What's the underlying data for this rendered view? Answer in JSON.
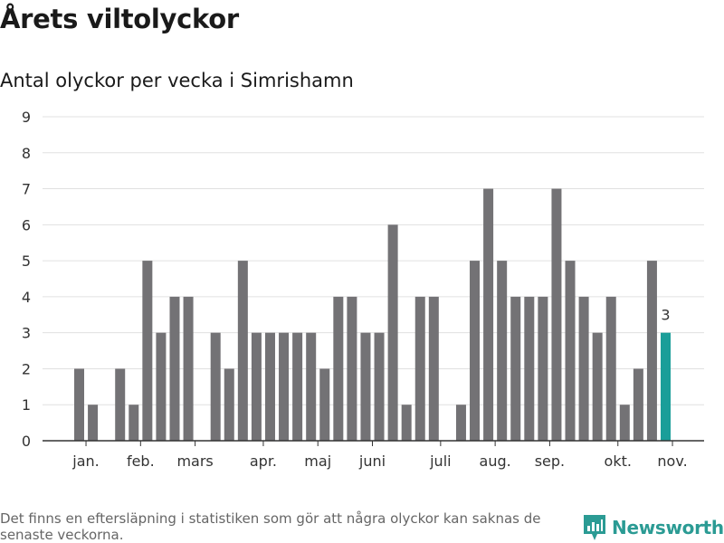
{
  "title": "Årets viltolyckor",
  "subtitle": "Antal olyckor per vecka i Simrishamn",
  "footer_note": "Det finns en eftersläpning i statistiken som gör att några olyckor kan saknas de senaste veckorna.",
  "brand": {
    "name": "Newsworthy",
    "icon": "newsworthy-logo-icon"
  },
  "colors": {
    "bar": "#737275",
    "highlight": "#1a9e99",
    "grid": "#e0e0e0",
    "axis": "#333333",
    "text": "#333333",
    "brand": "#2b9b94"
  },
  "chart_data": {
    "type": "bar",
    "title": "Antal olyckor per vecka i Simrishamn",
    "xlabel": "",
    "ylabel": "",
    "ylim": [
      0,
      9
    ],
    "yticks": [
      0,
      1,
      2,
      3,
      4,
      5,
      6,
      7,
      8,
      9
    ],
    "grid": true,
    "weeks": [
      1,
      2,
      3,
      4,
      5,
      6,
      7,
      8,
      9,
      10,
      11,
      12,
      13,
      14,
      15,
      16,
      17,
      18,
      19,
      20,
      21,
      22,
      23,
      24,
      25,
      26,
      27,
      28,
      29,
      30,
      31,
      32,
      33,
      34,
      35,
      36,
      37,
      38,
      39,
      40,
      41,
      42,
      43,
      44,
      45,
      46
    ],
    "values": [
      0,
      0,
      2,
      1,
      0,
      2,
      1,
      5,
      3,
      4,
      4,
      0,
      3,
      2,
      5,
      3,
      3,
      3,
      3,
      3,
      2,
      4,
      4,
      3,
      3,
      6,
      1,
      4,
      4,
      0,
      1,
      5,
      7,
      5,
      4,
      4,
      4,
      7,
      5,
      4,
      3,
      4,
      1,
      2,
      5,
      3
    ],
    "highlight_index": 45,
    "highlight_label": "3",
    "month_labels": [
      {
        "label": "jan.",
        "week": 3.5
      },
      {
        "label": "feb.",
        "week": 7.5
      },
      {
        "label": "mars",
        "week": 11.5
      },
      {
        "label": "apr.",
        "week": 16.5
      },
      {
        "label": "maj",
        "week": 20.5
      },
      {
        "label": "juni",
        "week": 24.5
      },
      {
        "label": "juli",
        "week": 29.5
      },
      {
        "label": "aug.",
        "week": 33.5
      },
      {
        "label": "sep.",
        "week": 37.5
      },
      {
        "label": "okt.",
        "week": 42.5
      },
      {
        "label": "nov.",
        "week": 46.5
      }
    ]
  }
}
